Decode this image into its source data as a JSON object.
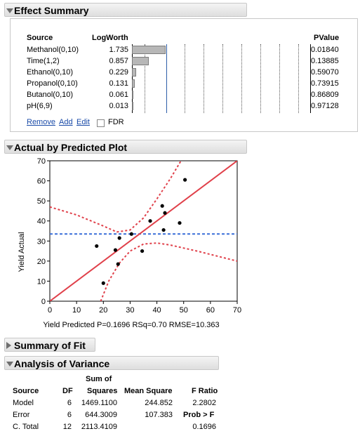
{
  "effect_summary": {
    "title": "Effect Summary",
    "headers": {
      "source": "Source",
      "logworth": "LogWorth",
      "pvalue": "PValue"
    },
    "rows": [
      {
        "source": "Methanol(0,10)",
        "logworth": "1.735",
        "pvalue": "0.01840",
        "lw_value": 1.735
      },
      {
        "source": "Time(1,2)",
        "logworth": "0.857",
        "pvalue": "0.13885",
        "lw_value": 0.857
      },
      {
        "source": "Ethanol(0,10)",
        "logworth": "0.229",
        "pvalue": "0.59070",
        "lw_value": 0.229
      },
      {
        "source": "Propanol(0,10)",
        "logworth": "0.131",
        "pvalue": "0.73915",
        "lw_value": 0.131
      },
      {
        "source": "Butanol(0,10)",
        "logworth": "0.061",
        "pvalue": "0.86809",
        "lw_value": 0.061
      },
      {
        "source": "pH(6,9)",
        "logworth": "0.013",
        "pvalue": "0.97128",
        "lw_value": 0.013
      }
    ],
    "links": {
      "remove": "Remove",
      "add": "Add",
      "edit": "Edit"
    },
    "fdr_label": "FDR",
    "fdr_checked": false
  },
  "actual_by_predicted": {
    "title": "Actual by Predicted Plot",
    "ylabel": "Yield Actual",
    "xlabel": "Yield Predicted P=0.1696 RSq=0.70 RMSE=10.363",
    "ticks": [
      "0",
      "10",
      "20",
      "30",
      "40",
      "50",
      "60",
      "70"
    ]
  },
  "chart_data": {
    "type": "scatter",
    "xlabel": "Yield Predicted P=0.1696 RSq=0.70 RMSE=10.363",
    "ylabel": "Yield Actual",
    "xlim": [
      0,
      70
    ],
    "ylim": [
      0,
      70
    ],
    "points": [
      {
        "x": 17.5,
        "y": 27.5
      },
      {
        "x": 20,
        "y": 9
      },
      {
        "x": 24.5,
        "y": 25.5
      },
      {
        "x": 25.5,
        "y": 18.5
      },
      {
        "x": 26,
        "y": 31.5
      },
      {
        "x": 30.5,
        "y": 33.5
      },
      {
        "x": 34.5,
        "y": 25
      },
      {
        "x": 37.5,
        "y": 40
      },
      {
        "x": 42,
        "y": 47.5
      },
      {
        "x": 42.5,
        "y": 35.5
      },
      {
        "x": 43,
        "y": 44
      },
      {
        "x": 48.5,
        "y": 39
      },
      {
        "x": 50.5,
        "y": 60.5
      }
    ],
    "fit_line": [
      [
        0,
        0
      ],
      [
        70,
        70
      ]
    ],
    "mean_line_y": 33.5,
    "upper_conf": [
      [
        0,
        47
      ],
      [
        10,
        43
      ],
      [
        20,
        37.5
      ],
      [
        25,
        34.5
      ],
      [
        30,
        35.5
      ],
      [
        35,
        41.5
      ],
      [
        40,
        51
      ],
      [
        45,
        61
      ],
      [
        49,
        70
      ]
    ],
    "lower_conf": [
      [
        19,
        0
      ],
      [
        22,
        10
      ],
      [
        26,
        19
      ],
      [
        30,
        25
      ],
      [
        35,
        28.5
      ],
      [
        40,
        29
      ],
      [
        45,
        28
      ],
      [
        55,
        25
      ],
      [
        70,
        20
      ]
    ],
    "colors": {
      "fit": "#e0404a",
      "mean": "#3a6fd8",
      "points": "#000000"
    }
  },
  "summary_of_fit": {
    "title": "Summary of Fit"
  },
  "anova": {
    "title": "Analysis of Variance",
    "headers": {
      "source": "Source",
      "df": "DF",
      "sum_sq_1": "Sum of",
      "sum_sq_2": "Squares",
      "mean_square": "Mean Square",
      "f_ratio": "F Ratio",
      "prob_f": "Prob > F"
    },
    "rows": [
      {
        "source": "Model",
        "df": "6",
        "ss": "1469.1100",
        "ms": "244.852",
        "extra": "2.2802"
      },
      {
        "source": "Error",
        "df": "6",
        "ss": "644.3009",
        "ms": "107.383",
        "extra": ""
      },
      {
        "source": "C. Total",
        "df": "12",
        "ss": "2113.4109",
        "ms": "",
        "extra": "0.1696"
      }
    ]
  }
}
